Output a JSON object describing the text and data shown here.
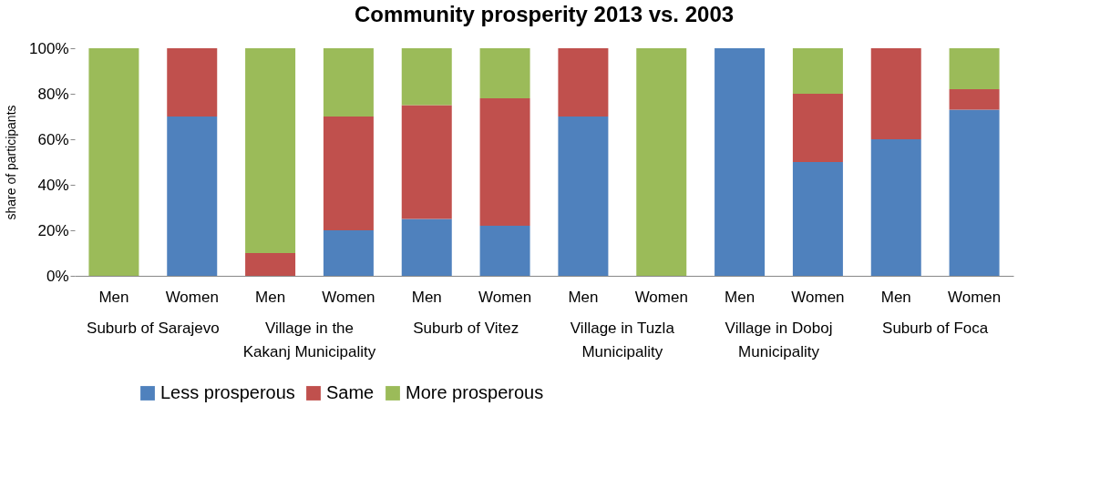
{
  "chart_data": {
    "type": "bar",
    "stacked": true,
    "title": "Community prosperity 2013 vs. 2003",
    "ylabel": "share of participants",
    "categories": [
      "Men",
      "Women",
      "Men",
      "Women",
      "Men",
      "Women",
      "Men",
      "Women",
      "Men",
      "Women",
      "Men",
      "Women"
    ],
    "series": [
      {
        "name": "Less prosperous",
        "color": "#4f81bd",
        "values": [
          0,
          70,
          0,
          20,
          25,
          22,
          70,
          0,
          100,
          50,
          60,
          73
        ]
      },
      {
        "name": "Same",
        "color": "#c0504d",
        "values": [
          0,
          30,
          10,
          50,
          50,
          56,
          30,
          0,
          0,
          30,
          40,
          9
        ]
      },
      {
        "name": "More prosperous",
        "color": "#9bbb59",
        "values": [
          100,
          0,
          90,
          30,
          25,
          22,
          0,
          100,
          0,
          20,
          0,
          18
        ]
      }
    ],
    "ylim": [
      0,
      100
    ],
    "yticks": [
      {
        "value": 0,
        "label": "0%"
      },
      {
        "value": 20,
        "label": "20%"
      },
      {
        "value": 40,
        "label": "40%"
      },
      {
        "value": 60,
        "label": "60%"
      },
      {
        "value": 80,
        "label": "80%"
      },
      {
        "value": 100,
        "label": "100%"
      }
    ],
    "annotations": [
      "Suburb of Sarajevo",
      "Village in the Kakanj Municipality",
      "Suburb of Vitez",
      "Village in Tuzla Municipality",
      "Village in Doboj Municipality",
      "Suburb of Foca"
    ],
    "legend": "bottom",
    "grid": false
  }
}
